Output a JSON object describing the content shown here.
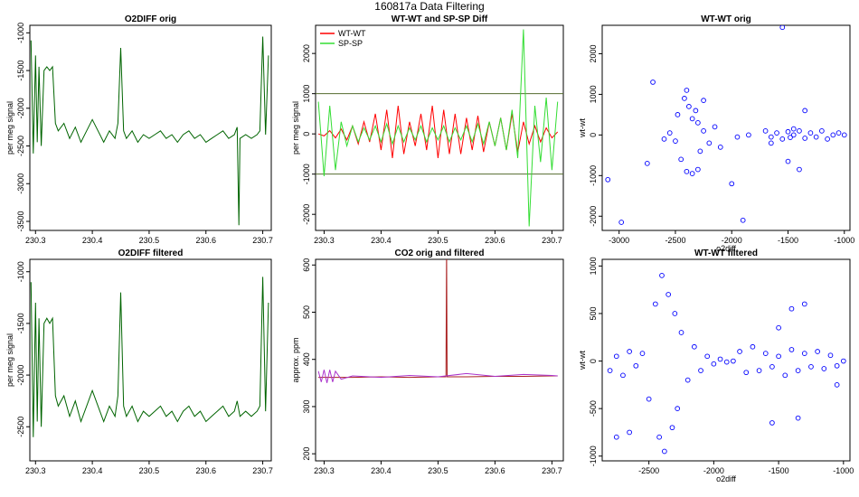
{
  "figure": {
    "title": "160817a   Data Filtering"
  },
  "chart_data": [
    {
      "id": "p1",
      "type": "line",
      "title": "O2DIFF orig",
      "xlabel": "",
      "ylabel": "per meg signal",
      "xlim": [
        230.29,
        230.715
      ],
      "ylim": [
        -3620,
        -900
      ],
      "xticks": [
        230.3,
        230.4,
        230.5,
        230.6,
        230.7
      ],
      "xtick_labels": [
        "230.3",
        "230.4",
        "230.5",
        "230.6",
        "230.7"
      ],
      "yticks": [
        -3500,
        -3000,
        -2500,
        -2000,
        -1500,
        -1000
      ],
      "ytick_labels": [
        "-3500",
        "-3000",
        "-2500",
        "-2000",
        "-1500",
        "-1000"
      ],
      "series": [
        {
          "color": "#006400",
          "x": [
            230.292,
            230.296,
            230.3,
            230.303,
            230.306,
            230.31,
            230.315,
            230.32,
            230.325,
            230.33,
            230.335,
            230.34,
            230.35,
            230.36,
            230.37,
            230.38,
            230.39,
            230.4,
            230.41,
            230.42,
            230.43,
            230.44,
            230.445,
            230.45,
            230.455,
            230.46,
            230.47,
            230.48,
            230.49,
            230.5,
            230.51,
            230.52,
            230.53,
            230.54,
            230.55,
            230.56,
            230.57,
            230.58,
            230.59,
            230.6,
            230.61,
            230.62,
            230.63,
            230.64,
            230.65,
            230.655,
            230.658,
            230.66,
            230.67,
            230.68,
            230.69,
            230.695,
            230.7,
            230.705,
            230.71
          ],
          "y": [
            -1100,
            -2600,
            -1300,
            -2450,
            -1450,
            -2500,
            -1500,
            -1450,
            -1500,
            -1450,
            -2200,
            -2300,
            -2200,
            -2400,
            -2250,
            -2450,
            -2300,
            -2150,
            -2300,
            -2450,
            -2300,
            -2400,
            -2200,
            -1200,
            -2300,
            -2400,
            -2300,
            -2450,
            -2350,
            -2400,
            -2350,
            -2300,
            -2400,
            -2350,
            -2450,
            -2350,
            -2300,
            -2400,
            -2350,
            -2450,
            -2400,
            -2350,
            -2300,
            -2400,
            -2350,
            -2250,
            -3550,
            -2400,
            -2350,
            -2400,
            -2350,
            -2300,
            -1050,
            -2350,
            -1300
          ]
        }
      ]
    },
    {
      "id": "p2",
      "type": "line",
      "title": "WT-WT and SP-SP Diff",
      "xlabel": "",
      "ylabel": "per meg signal",
      "xlim": [
        230.285,
        230.72
      ],
      "ylim": [
        -2400,
        2700
      ],
      "xticks": [
        230.3,
        230.4,
        230.5,
        230.6,
        230.7
      ],
      "xtick_labels": [
        "230.3",
        "230.4",
        "230.5",
        "230.6",
        "230.7"
      ],
      "yticks": [
        -2000,
        -1000,
        0,
        1000,
        2000
      ],
      "ytick_labels": [
        "-2000",
        "-1000",
        "0",
        "1000",
        "2000"
      ],
      "hlines": [
        1000,
        -1000
      ],
      "hline_color": "#556b2f",
      "legend_position": "top-left",
      "legend": [
        "WT-WT",
        "SP-SP"
      ],
      "series": [
        {
          "name": "WT-WT",
          "color": "#ff0000",
          "x": [
            230.29,
            230.3,
            230.31,
            230.32,
            230.33,
            230.34,
            230.35,
            230.36,
            230.37,
            230.38,
            230.39,
            230.4,
            230.41,
            230.42,
            230.43,
            230.44,
            230.45,
            230.46,
            230.47,
            230.48,
            230.49,
            230.5,
            230.51,
            230.52,
            230.53,
            230.54,
            230.55,
            230.56,
            230.57,
            230.58,
            230.59,
            230.6,
            230.61,
            230.62,
            230.63,
            230.64,
            230.65,
            230.66,
            230.67,
            230.68,
            230.69,
            230.7,
            230.71
          ],
          "y": [
            0,
            -50,
            80,
            -100,
            120,
            -150,
            200,
            -250,
            300,
            -200,
            500,
            -400,
            600,
            -600,
            700,
            -500,
            300,
            -300,
            500,
            -400,
            700,
            -600,
            600,
            -500,
            500,
            -500,
            400,
            -400,
            450,
            -450,
            300,
            -300,
            400,
            -400,
            500,
            -450,
            300,
            -250,
            200,
            -200,
            150,
            -100,
            50
          ]
        },
        {
          "name": "SP-SP",
          "color": "#33dd33",
          "x": [
            230.29,
            230.3,
            230.31,
            230.32,
            230.33,
            230.34,
            230.35,
            230.36,
            230.37,
            230.38,
            230.39,
            230.4,
            230.41,
            230.42,
            230.43,
            230.44,
            230.45,
            230.46,
            230.47,
            230.48,
            230.49,
            230.5,
            230.51,
            230.52,
            230.53,
            230.54,
            230.55,
            230.56,
            230.57,
            230.58,
            230.59,
            230.6,
            230.61,
            230.62,
            230.63,
            230.64,
            230.65,
            230.66,
            230.67,
            230.68,
            230.69,
            230.7,
            230.71
          ],
          "y": [
            800,
            -1050,
            700,
            -900,
            300,
            -300,
            200,
            -200,
            150,
            -150,
            200,
            -200,
            250,
            -250,
            200,
            -200,
            150,
            -150,
            200,
            -200,
            150,
            -150,
            200,
            -200,
            150,
            -150,
            200,
            -200,
            250,
            -250,
            300,
            -300,
            400,
            -400,
            600,
            -600,
            2600,
            -2300,
            700,
            -700,
            900,
            -900,
            800
          ]
        }
      ]
    },
    {
      "id": "p3",
      "type": "scatter",
      "title": "WT-WT orig",
      "xlabel": "o2diff",
      "ylabel": "wt-wt",
      "xlim": [
        -3150,
        -950
      ],
      "ylim": [
        -2350,
        2700
      ],
      "xticks": [
        -3000,
        -2500,
        -2000,
        -1500,
        -1000
      ],
      "xtick_labels": [
        "-3000",
        "-2500",
        "-2000",
        "-1500",
        "-1000"
      ],
      "yticks": [
        -2000,
        -1000,
        0,
        1000,
        2000
      ],
      "ytick_labels": [
        "-2000",
        "-1000",
        "0",
        "1000",
        "2000"
      ],
      "series": [
        {
          "color": "#0000ff",
          "x": [
            -3100,
            -2980,
            -2750,
            -2700,
            -2600,
            -2550,
            -2500,
            -2480,
            -2450,
            -2420,
            -2400,
            -2380,
            -2350,
            -2320,
            -2300,
            -2280,
            -2250,
            -2200,
            -2150,
            -2100,
            -2000,
            -1950,
            -1900,
            -1850,
            -1700,
            -1650,
            -1600,
            -1550,
            -1500,
            -1480,
            -1450,
            -1400,
            -1350,
            -1300,
            -1250,
            -1200,
            -1150,
            -1100,
            -1050,
            -1000,
            -1550,
            -1400,
            -1350,
            -1650,
            -1500,
            -1450,
            -2400,
            -2300,
            -2250,
            -2350
          ],
          "y": [
            -1100,
            -2150,
            -700,
            1300,
            -100,
            50,
            -150,
            500,
            -600,
            900,
            -900,
            700,
            -950,
            600,
            300,
            -400,
            100,
            -200,
            200,
            -300,
            -1200,
            -50,
            -2100,
            0,
            100,
            -50,
            50,
            -100,
            80,
            -60,
            0,
            100,
            -80,
            50,
            -50,
            100,
            -100,
            0,
            50,
            0,
            2650,
            -850,
            600,
            -200,
            -650,
            150,
            1100,
            -850,
            850,
            400
          ]
        }
      ]
    },
    {
      "id": "p4",
      "type": "line",
      "title": "O2DIFF filtered",
      "xlabel": "",
      "ylabel": "per meg signal",
      "xlim": [
        230.29,
        230.715
      ],
      "ylim": [
        -2830,
        -880
      ],
      "xticks": [
        230.3,
        230.4,
        230.5,
        230.6,
        230.7
      ],
      "xtick_labels": [
        "230.3",
        "230.4",
        "230.5",
        "230.6",
        "230.7"
      ],
      "yticks": [
        -2500,
        -2000,
        -1500,
        -1000
      ],
      "ytick_labels": [
        "-2500",
        "-2000",
        "-1500",
        "-1000"
      ],
      "series": [
        {
          "color": "#006400",
          "x": [
            230.292,
            230.296,
            230.3,
            230.303,
            230.306,
            230.31,
            230.315,
            230.32,
            230.325,
            230.33,
            230.335,
            230.34,
            230.35,
            230.36,
            230.37,
            230.38,
            230.39,
            230.4,
            230.41,
            230.42,
            230.43,
            230.44,
            230.445,
            230.45,
            230.455,
            230.46,
            230.47,
            230.48,
            230.49,
            230.5,
            230.51,
            230.52,
            230.53,
            230.54,
            230.55,
            230.56,
            230.57,
            230.58,
            230.59,
            230.6,
            230.61,
            230.62,
            230.63,
            230.64,
            230.65,
            230.655,
            230.66,
            230.67,
            230.68,
            230.69,
            230.695,
            230.7,
            230.705,
            230.71
          ],
          "y": [
            -1100,
            -2600,
            -1300,
            -2450,
            -1450,
            -2500,
            -1500,
            -1450,
            -1500,
            -1450,
            -2200,
            -2300,
            -2200,
            -2400,
            -2250,
            -2450,
            -2300,
            -2150,
            -2300,
            -2450,
            -2300,
            -2400,
            -2200,
            -1200,
            -2300,
            -2400,
            -2300,
            -2450,
            -2350,
            -2400,
            -2350,
            -2300,
            -2400,
            -2350,
            -2450,
            -2350,
            -2300,
            -2400,
            -2350,
            -2450,
            -2400,
            -2350,
            -2300,
            -2400,
            -2350,
            -2250,
            -2400,
            -2350,
            -2400,
            -2350,
            -2300,
            -1050,
            -2350,
            -1300
          ]
        }
      ]
    },
    {
      "id": "p5",
      "type": "line",
      "title": "CO2 orig and filtered",
      "xlabel": "",
      "ylabel": "approx. ppm",
      "xlim": [
        230.285,
        230.72
      ],
      "ylim": [
        185,
        612
      ],
      "xticks": [
        230.3,
        230.4,
        230.5,
        230.6,
        230.7
      ],
      "xtick_labels": [
        "230.3",
        "230.4",
        "230.5",
        "230.6",
        "230.7"
      ],
      "yticks": [
        200,
        300,
        400,
        500,
        600
      ],
      "ytick_labels": [
        "200",
        "300",
        "400",
        "500",
        "600"
      ],
      "series": [
        {
          "color": "#aa2222",
          "x": [
            230.29,
            230.3,
            230.35,
            230.4,
            230.45,
            230.5,
            230.514,
            230.515,
            230.516,
            230.55,
            230.6,
            230.65,
            230.7,
            230.71
          ],
          "y": [
            362,
            362,
            362,
            363,
            362,
            363,
            363,
            640,
            363,
            363,
            364,
            364,
            365,
            365
          ]
        },
        {
          "color": "#aa33cc",
          "x": [
            230.29,
            230.295,
            230.3,
            230.305,
            230.31,
            230.315,
            230.32,
            230.33,
            230.35,
            230.4,
            230.45,
            230.5,
            230.55,
            230.6,
            230.65,
            230.7,
            230.71
          ],
          "y": [
            375,
            352,
            378,
            350,
            378,
            352,
            375,
            358,
            365,
            362,
            366,
            363,
            370,
            364,
            368,
            366,
            365
          ]
        }
      ]
    },
    {
      "id": "p6",
      "type": "scatter",
      "title": "WT-WT filtered",
      "xlabel": "o2diff",
      "ylabel": "wt-wt",
      "xlim": [
        -2860,
        -950
      ],
      "ylim": [
        -1050,
        1070
      ],
      "xticks": [
        -2500,
        -2000,
        -1500,
        -1000
      ],
      "xtick_labels": [
        "-2500",
        "-2000",
        "-1500",
        "-1000"
      ],
      "yticks": [
        -1000,
        -500,
        0,
        500,
        1000
      ],
      "ytick_labels": [
        "-1000",
        "-500",
        "0",
        "500",
        "1000"
      ],
      "series": [
        {
          "color": "#0000ff",
          "x": [
            -2800,
            -2750,
            -2700,
            -2650,
            -2600,
            -2550,
            -2500,
            -2450,
            -2420,
            -2400,
            -2380,
            -2350,
            -2320,
            -2300,
            -2280,
            -2250,
            -2200,
            -2150,
            -2100,
            -2050,
            -2000,
            -1950,
            -1900,
            -1850,
            -1800,
            -1750,
            -1700,
            -1650,
            -1600,
            -1550,
            -1500,
            -1450,
            -1400,
            -1350,
            -1300,
            -1250,
            -1200,
            -1150,
            -1100,
            -1050,
            -1000,
            -1500,
            -1400,
            -1350,
            -1300,
            -1050,
            -1550,
            -2750,
            -2650
          ],
          "y": [
            -100,
            50,
            -150,
            100,
            -50,
            80,
            -400,
            600,
            -800,
            900,
            -950,
            700,
            -700,
            500,
            -500,
            300,
            -200,
            150,
            -100,
            50,
            -30,
            20,
            -10,
            0,
            100,
            -120,
            150,
            -100,
            80,
            -60,
            50,
            -150,
            120,
            -100,
            80,
            -60,
            100,
            -80,
            60,
            -50,
            0,
            350,
            550,
            -600,
            600,
            -250,
            -650,
            -800,
            -750
          ]
        }
      ]
    }
  ]
}
